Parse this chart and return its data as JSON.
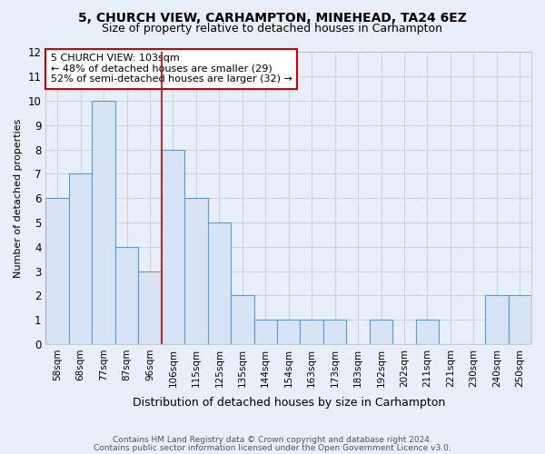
{
  "title1": "5, CHURCH VIEW, CARHAMPTON, MINEHEAD, TA24 6EZ",
  "title2": "Size of property relative to detached houses in Carhampton",
  "xlabel": "Distribution of detached houses by size in Carhampton",
  "ylabel": "Number of detached properties",
  "categories": [
    "58sqm",
    "68sqm",
    "77sqm",
    "87sqm",
    "96sqm",
    "106sqm",
    "115sqm",
    "125sqm",
    "135sqm",
    "144sqm",
    "154sqm",
    "163sqm",
    "173sqm",
    "183sqm",
    "192sqm",
    "202sqm",
    "211sqm",
    "221sqm",
    "230sqm",
    "240sqm",
    "250sqm"
  ],
  "values": [
    6,
    7,
    10,
    4,
    3,
    8,
    6,
    5,
    2,
    1,
    1,
    1,
    1,
    0,
    1,
    0,
    1,
    0,
    0,
    2,
    2
  ],
  "bar_color": "#d6e4f5",
  "bar_edge_color": "#5b9bd5",
  "vline_index": 5,
  "vline_color": "#cc0000",
  "annotation_text": "5 CHURCH VIEW: 103sqm\n← 48% of detached houses are smaller (29)\n52% of semi-detached houses are larger (32) →",
  "annotation_box_color": "white",
  "annotation_box_edge_color": "#cc0000",
  "ylim_max": 12,
  "footer1": "Contains HM Land Registry data © Crown copyright and database right 2024.",
  "footer2": "Contains public sector information licensed under the Open Government Licence v3.0.",
  "bg_color": "#e8eff8",
  "grid_color": "#c8d4e0",
  "title1_fontsize": 10,
  "title2_fontsize": 9
}
